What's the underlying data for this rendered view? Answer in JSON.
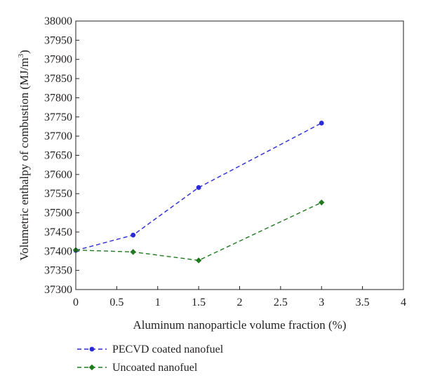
{
  "chart_data": {
    "type": "line",
    "title": "",
    "xlabel": "Aluminum nanoparticle volume fraction (%)",
    "ylabel_main": "Volumetric enthalpy of combustion (MJ/m",
    "ylabel_sup": "3",
    "ylabel_close": ")",
    "xlim": [
      0,
      4
    ],
    "ylim": [
      37300,
      38000
    ],
    "xticks": [
      0,
      0.5,
      1,
      1.5,
      2,
      2.5,
      3,
      3.5,
      4
    ],
    "xtick_labels": [
      "0",
      "0.5",
      "1",
      "1.5",
      "2",
      "2.5",
      "3",
      "3.5",
      "4"
    ],
    "yticks": [
      37300,
      37350,
      37400,
      37450,
      37500,
      37550,
      37600,
      37650,
      37700,
      37750,
      37800,
      37850,
      37900,
      37950,
      38000
    ],
    "ytick_labels": [
      "37300",
      "37350",
      "37400",
      "37450",
      "37500",
      "37550",
      "37600",
      "37650",
      "37700",
      "37750",
      "37800",
      "37850",
      "37900",
      "37950",
      "38000"
    ],
    "grid": false,
    "legend_position": "bottom-left",
    "series": [
      {
        "name": "PECVD coated nanofuel",
        "color": "#2a2ad6",
        "marker": "circle",
        "line_style": "dashed",
        "x": [
          0,
          0.7,
          1.5,
          3
        ],
        "y": [
          37402,
          37442,
          37566,
          37734
        ]
      },
      {
        "name": "Uncoated nanofuel",
        "color": "#1f7a1f",
        "marker": "diamond",
        "line_style": "dashed",
        "x": [
          0,
          0.7,
          1.5,
          3
        ],
        "y": [
          37403,
          37398,
          37376,
          37527
        ]
      }
    ]
  }
}
